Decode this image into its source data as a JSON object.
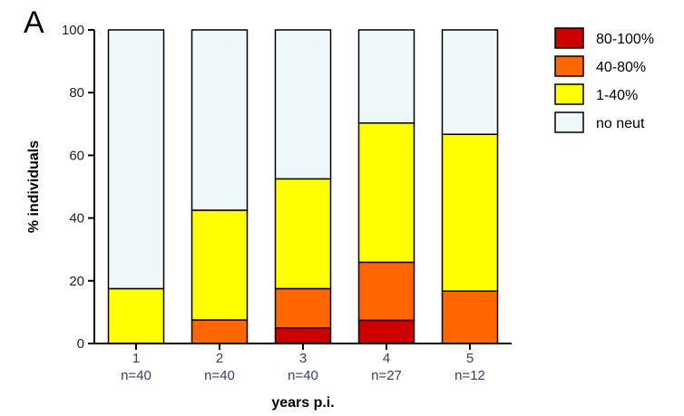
{
  "panel_label": "A",
  "chart_data": {
    "type": "bar",
    "stacked": true,
    "title": "",
    "xlabel": "years p.i.",
    "ylabel": "% individuals",
    "ylim": [
      0,
      100
    ],
    "yticks": [
      0,
      20,
      40,
      60,
      80,
      100
    ],
    "categories": [
      "1",
      "2",
      "3",
      "4",
      "5"
    ],
    "category_sublabels": [
      "n=40",
      "n=40",
      "n=40",
      "n=27",
      "n=12"
    ],
    "series": [
      {
        "name": "80-100%",
        "color": "#cc0000",
        "values": [
          0,
          0,
          5,
          7.4,
          0
        ]
      },
      {
        "name": "40-80%",
        "color": "#ff6600",
        "values": [
          0,
          7.5,
          12.5,
          18.5,
          16.7
        ]
      },
      {
        "name": "1-40%",
        "color": "#ffff00",
        "values": [
          17.5,
          35,
          35,
          44.4,
          50
        ]
      },
      {
        "name": "no neut",
        "color": "#eef8fb",
        "values": [
          82.5,
          57.5,
          47.5,
          29.7,
          33.3
        ]
      }
    ],
    "legend_position": "right",
    "legend_order": [
      "80-100%",
      "40-80%",
      "1-40%",
      "no neut"
    ],
    "grid": false
  }
}
